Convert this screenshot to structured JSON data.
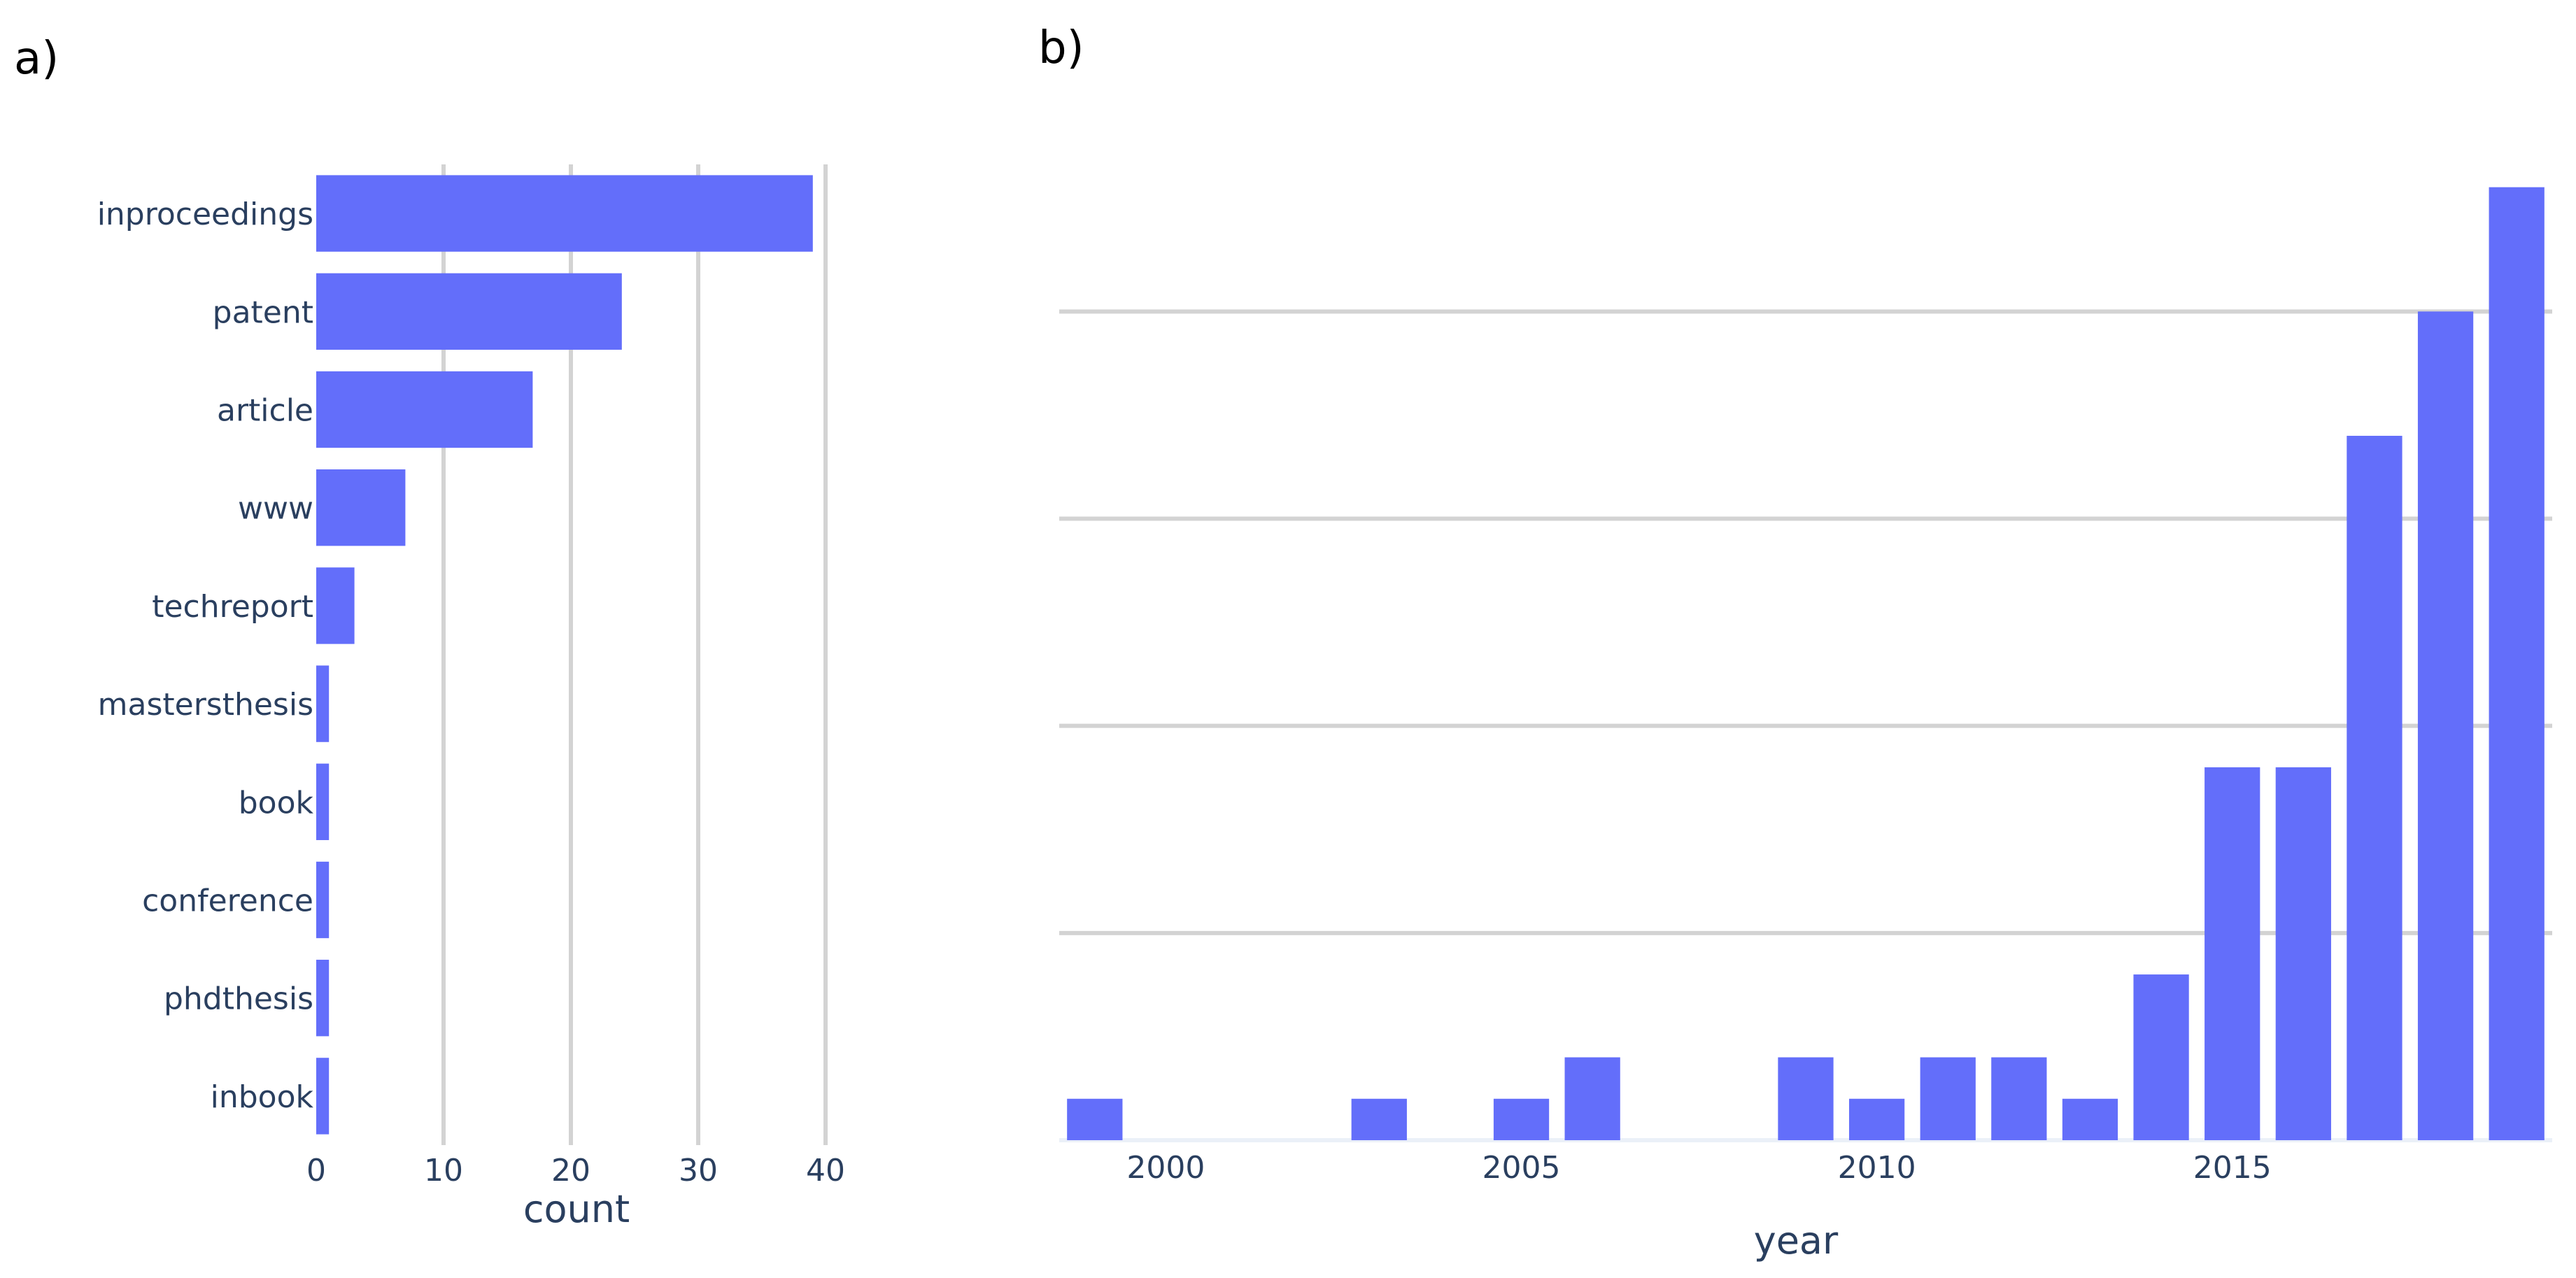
{
  "panels": {
    "a": "a)",
    "b": "b)"
  },
  "colors": {
    "bar": "#636efa",
    "grid": "#d3d3d3",
    "text": "#2a3f5f",
    "zeroline": "#ebf0f8"
  },
  "chart_data": [
    {
      "type": "bar",
      "orientation": "horizontal",
      "categories": [
        "inproceedings",
        "patent",
        "article",
        "www",
        "techreport",
        "mastersthesis",
        "book",
        "conference",
        "phdthesis",
        "inbook"
      ],
      "values": [
        39,
        24,
        17,
        7,
        3,
        1,
        1,
        1,
        1,
        1
      ],
      "xlabel": "count",
      "ylabel": "",
      "xticks": [
        "0",
        "10",
        "20",
        "30",
        "40"
      ],
      "xlim": [
        0,
        41
      ],
      "grid": "vertical"
    },
    {
      "type": "bar",
      "x": [
        1999,
        2003,
        2005,
        2006,
        2009,
        2010,
        2011,
        2012,
        2013,
        2014,
        2015,
        2016,
        2017,
        2018,
        2019
      ],
      "values": [
        1,
        1,
        1,
        2,
        2,
        1,
        2,
        2,
        1,
        4,
        9,
        9,
        17,
        20,
        23
      ],
      "xlabel": "year",
      "ylabel": "",
      "xticks": [
        "2000",
        "2005",
        "2010",
        "2015"
      ],
      "xlim": [
        1998.5,
        2019.5
      ],
      "ylim": [
        0,
        23.5
      ],
      "gridlines_at": [
        5,
        10,
        15,
        20
      ],
      "yticklabels_shown": false
    }
  ]
}
